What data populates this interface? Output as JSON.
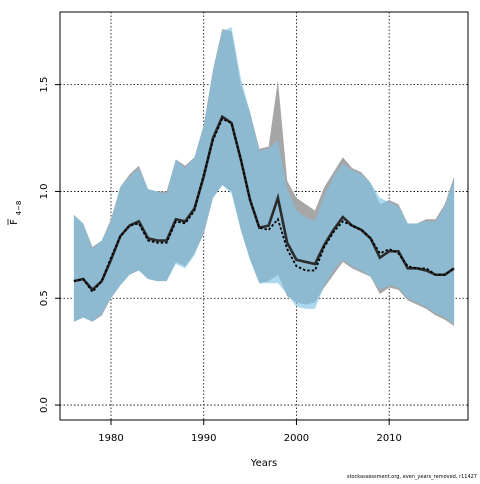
{
  "chart_data": {
    "type": "line",
    "xlabel": "Years",
    "ylabel_main": "F",
    "ylabel_sub": "4−8",
    "footnote": "stockassessment.org, even_years_removed, r11427",
    "xlim": [
      1974.5,
      2018.5
    ],
    "ylim": [
      -0.07,
      1.84
    ],
    "x_ticks": [
      1980,
      1990,
      2000,
      2010
    ],
    "y_ticks": [
      0.0,
      0.5,
      1.0,
      1.5
    ],
    "y_tick_labels": [
      "0.0",
      "0.5",
      "1.0",
      "1.5"
    ],
    "grid": true,
    "years": [
      1976,
      1977,
      1978,
      1979,
      1980,
      1981,
      1982,
      1983,
      1984,
      1985,
      1986,
      1987,
      1988,
      1989,
      1990,
      1991,
      1992,
      1993,
      1994,
      1995,
      1996,
      1997,
      1998,
      1999,
      2000,
      2001,
      2002,
      2003,
      2004,
      2005,
      2006,
      2007,
      2008,
      2009,
      2010,
      2011,
      2012,
      2013,
      2014,
      2015,
      2016,
      2017
    ],
    "series": [
      {
        "role": "reference",
        "line_color": "#2b2b2b",
        "band_color": "#a6a6a6",
        "estimate": [
          0.58,
          0.59,
          0.54,
          0.58,
          0.68,
          0.79,
          0.84,
          0.86,
          0.78,
          0.77,
          0.77,
          0.87,
          0.86,
          0.92,
          1.07,
          1.25,
          1.35,
          1.32,
          1.15,
          0.96,
          0.83,
          0.84,
          0.97,
          0.76,
          0.68,
          0.67,
          0.66,
          0.75,
          0.82,
          0.88,
          0.84,
          0.82,
          0.78,
          0.69,
          0.72,
          0.72,
          0.64,
          0.64,
          0.63,
          0.61,
          0.61,
          0.64
        ],
        "lower": [
          0.39,
          0.41,
          0.39,
          0.42,
          0.5,
          0.56,
          0.61,
          0.63,
          0.59,
          0.58,
          0.58,
          0.67,
          0.65,
          0.71,
          0.8,
          0.97,
          1.03,
          1.0,
          0.82,
          0.68,
          0.57,
          0.58,
          0.61,
          0.51,
          0.48,
          0.47,
          0.48,
          0.55,
          0.61,
          0.67,
          0.64,
          0.62,
          0.6,
          0.52,
          0.55,
          0.54,
          0.49,
          0.47,
          0.45,
          0.42,
          0.4,
          0.37
        ],
        "upper": [
          0.89,
          0.85,
          0.74,
          0.77,
          0.87,
          1.02,
          1.08,
          1.12,
          1.01,
          1.0,
          1.0,
          1.15,
          1.12,
          1.16,
          1.31,
          1.57,
          1.76,
          1.75,
          1.5,
          1.37,
          1.2,
          1.21,
          1.52,
          1.05,
          0.97,
          0.94,
          0.91,
          1.02,
          1.09,
          1.16,
          1.11,
          1.09,
          1.04,
          0.94,
          0.96,
          0.94,
          0.85,
          0.85,
          0.87,
          0.87,
          0.94,
          1.07
        ]
      },
      {
        "role": "estimate",
        "line_color": "#000000",
        "band_color": "#7fc4e8",
        "estimate": [
          0.58,
          0.59,
          0.53,
          0.58,
          0.69,
          0.79,
          0.84,
          0.85,
          0.77,
          0.76,
          0.76,
          0.86,
          0.85,
          0.91,
          1.08,
          1.24,
          1.34,
          1.32,
          1.15,
          0.96,
          0.83,
          0.82,
          0.87,
          0.73,
          0.65,
          0.63,
          0.63,
          0.74,
          0.81,
          0.86,
          0.84,
          0.82,
          0.78,
          0.71,
          0.73,
          0.71,
          0.65,
          0.64,
          0.64,
          0.61,
          0.61,
          0.64
        ],
        "lower": [
          0.39,
          0.41,
          0.39,
          0.43,
          0.5,
          0.56,
          0.61,
          0.63,
          0.59,
          0.58,
          0.58,
          0.66,
          0.64,
          0.7,
          0.81,
          0.97,
          1.03,
          0.99,
          0.82,
          0.68,
          0.57,
          0.57,
          0.57,
          0.52,
          0.46,
          0.45,
          0.45,
          0.56,
          0.63,
          0.68,
          0.65,
          0.63,
          0.6,
          0.54,
          0.56,
          0.55,
          0.5,
          0.48,
          0.46,
          0.43,
          0.41,
          0.38
        ],
        "upper": [
          0.89,
          0.85,
          0.73,
          0.77,
          0.86,
          1.02,
          1.07,
          1.11,
          1.01,
          1.0,
          0.99,
          1.15,
          1.11,
          1.16,
          1.3,
          1.56,
          1.75,
          1.77,
          1.53,
          1.37,
          1.19,
          1.2,
          1.24,
          1.01,
          0.91,
          0.88,
          0.86,
          0.98,
          1.07,
          1.13,
          1.1,
          1.08,
          1.04,
          0.97,
          0.95,
          0.93,
          0.85,
          0.85,
          0.86,
          0.86,
          0.93,
          1.06
        ]
      }
    ]
  }
}
